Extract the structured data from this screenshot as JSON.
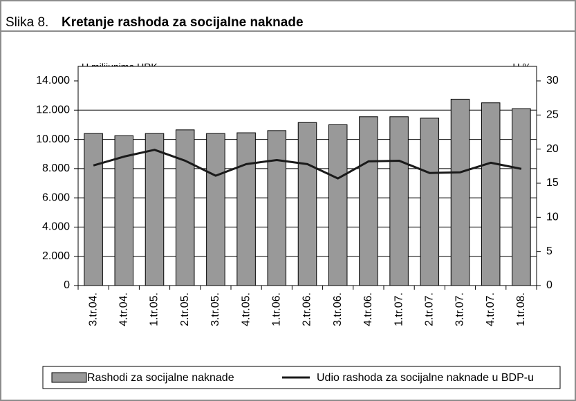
{
  "chart_data": {
    "type": "bar",
    "figure_label": "Slika 8.",
    "title": "Kretanje rashoda za socijalne naknade",
    "y_label": "U milijunima HRK",
    "y2_label": "U %",
    "categories": [
      "3.tr.04.",
      "4.tr.04.",
      "1.tr.05.",
      "2.tr.05.",
      "3.tr.05.",
      "4.tr.05.",
      "1.tr.06.",
      "2.tr.06.",
      "3.tr.06.",
      "4.tr.06.",
      "1.tr.07.",
      "2.tr.07.",
      "3.tr.07.",
      "4.tr.07.",
      "1.tr.08."
    ],
    "series": [
      {
        "name": "Rashodi za socijalne naknade",
        "type": "bar",
        "color": "#999999",
        "values": [
          10400,
          10250,
          10400,
          10650,
          10400,
          10450,
          10600,
          11150,
          11000,
          11550,
          11550,
          11450,
          12750,
          12500,
          12100
        ]
      },
      {
        "name": "Udio rashoda za socijalne naknade u BDP-u",
        "type": "line",
        "axis": "y2",
        "color": "#1a1a1a",
        "values": [
          17.6,
          18.9,
          19.9,
          18.3,
          16.1,
          17.8,
          18.4,
          17.8,
          15.7,
          18.2,
          18.3,
          16.5,
          16.6,
          18.0,
          17.1
        ]
      }
    ],
    "ylim": [
      0,
      14000
    ],
    "yticks": [
      0,
      {
        "value": 2000,
        "label": "2.000"
      },
      {
        "value": 4000,
        "label": "4.000"
      },
      {
        "value": 6000,
        "label": "6.000"
      },
      {
        "value": 8000,
        "label": "8.000"
      },
      {
        "value": 10000,
        "label": "10.000"
      },
      {
        "value": 12000,
        "label": "12.000"
      },
      {
        "value": 14000,
        "label": "14.000"
      }
    ],
    "y2lim": [
      0,
      30
    ],
    "y2ticks": [
      0,
      5,
      10,
      15,
      20,
      25,
      30
    ],
    "grid": true,
    "legend": "bottom"
  }
}
